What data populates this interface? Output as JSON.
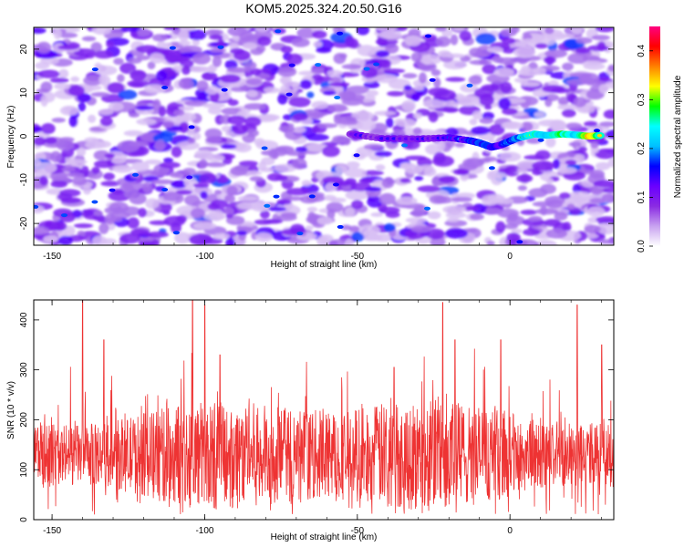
{
  "title": "KOM5.2025.324.20.50.G16",
  "chart_data": [
    {
      "type": "heatmap",
      "xlabel": "Height of straight line (km)",
      "ylabel": "Frequency (Hz)",
      "xlim": [
        -156,
        34
      ],
      "ylim": [
        -25,
        25
      ],
      "xticks": [
        -150,
        -100,
        -50,
        0
      ],
      "yticks": [
        -20,
        -10,
        0,
        10,
        20
      ],
      "colorbar": {
        "label": "Normalized spectral amplitude",
        "range": [
          0,
          0.45
        ],
        "ticks": [
          0.0,
          0.1,
          0.2,
          0.3,
          0.4
        ],
        "tick_labels": [
          "0.0",
          "0.1",
          "0.2",
          "0.3",
          "0.4"
        ],
        "colormap": [
          "#ffffff",
          "#c8a2f0",
          "#8a2be2",
          "#6a00ff",
          "#0000ff",
          "#00bfff",
          "#00ffff",
          "#00ff00",
          "#ffff00",
          "#ff8000",
          "#ff0000",
          "#ff0080"
        ]
      },
      "signal_track": [
        {
          "x": -52,
          "y": 0.5,
          "amp": 0.12
        },
        {
          "x": -42,
          "y": -0.5,
          "amp": 0.12
        },
        {
          "x": -30,
          "y": -0.6,
          "amp": 0.15
        },
        {
          "x": -20,
          "y": -0.3,
          "amp": 0.15
        },
        {
          "x": -13,
          "y": -1.0,
          "amp": 0.2
        },
        {
          "x": -10,
          "y": -1.5,
          "amp": 0.22
        },
        {
          "x": -6,
          "y": -2.5,
          "amp": 0.2
        },
        {
          "x": -3,
          "y": -2.0,
          "amp": 0.18
        },
        {
          "x": 2,
          "y": -0.5,
          "amp": 0.25
        },
        {
          "x": 8,
          "y": 0.5,
          "amp": 0.33
        },
        {
          "x": 12,
          "y": 0.2,
          "amp": 0.3
        },
        {
          "x": 17,
          "y": 0.5,
          "amp": 0.35
        },
        {
          "x": 22,
          "y": 0.3,
          "amp": 0.3
        },
        {
          "x": 26,
          "y": 0.0,
          "amp": 0.45
        },
        {
          "x": 30,
          "y": 0.2,
          "amp": 0.35
        }
      ]
    },
    {
      "type": "line",
      "xlabel": "Height of straight line (km)",
      "ylabel": "SNR (10 * v/v)",
      "xlim": [
        -156,
        34
      ],
      "ylim": [
        0,
        440
      ],
      "xticks": [
        -150,
        -100,
        -50,
        0
      ],
      "yticks": [
        0,
        100,
        200,
        300,
        400
      ],
      "series": [
        {
          "color": "#ee3333",
          "baseline": 130,
          "spread": 90,
          "peaks": [
            {
              "x": -140,
              "y": 440
            },
            {
              "x": -133,
              "y": 360
            },
            {
              "x": -104,
              "y": 440
            },
            {
              "x": -100,
              "y": 430
            },
            {
              "x": -95,
              "y": 330
            },
            {
              "x": -38,
              "y": 305
            },
            {
              "x": -22,
              "y": 435
            },
            {
              "x": -18,
              "y": 360
            },
            {
              "x": -3,
              "y": 360
            },
            {
              "x": 22,
              "y": 430
            },
            {
              "x": 30,
              "y": 350
            }
          ]
        }
      ]
    }
  ]
}
